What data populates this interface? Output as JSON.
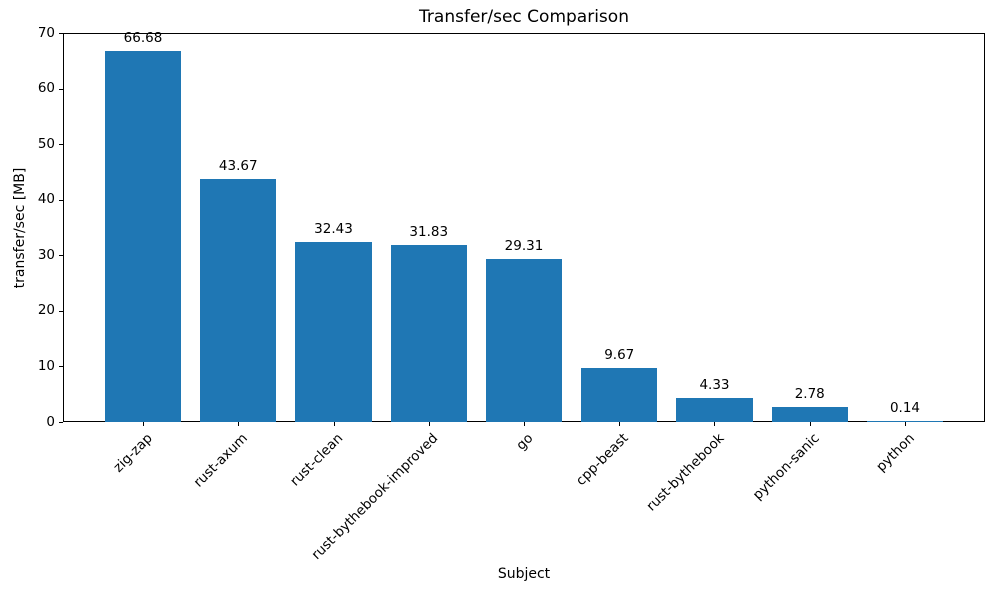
{
  "chart_data": {
    "type": "bar",
    "title": "Transfer/sec Comparison",
    "xlabel": "Subject",
    "ylabel": "transfer/sec [MB]",
    "categories": [
      "zig-zap",
      "rust-axum",
      "rust-clean",
      "rust-bythebook-improved",
      "go",
      "cpp-beast",
      "rust-bythebook",
      "python-sanic",
      "python"
    ],
    "values": [
      66.68,
      43.67,
      32.43,
      31.83,
      29.31,
      9.67,
      4.33,
      2.78,
      0.14
    ],
    "value_labels": [
      "66.68",
      "43.67",
      "32.43",
      "31.83",
      "29.31",
      "9.67",
      "4.33",
      "2.78",
      "0.14"
    ],
    "ylim": [
      0,
      70
    ],
    "yticks": [
      0,
      10,
      20,
      30,
      40,
      50,
      60,
      70
    ],
    "bar_color": "#1f77b4",
    "grid": false,
    "legend_position": "none",
    "xtick_rotation_deg": 45
  }
}
